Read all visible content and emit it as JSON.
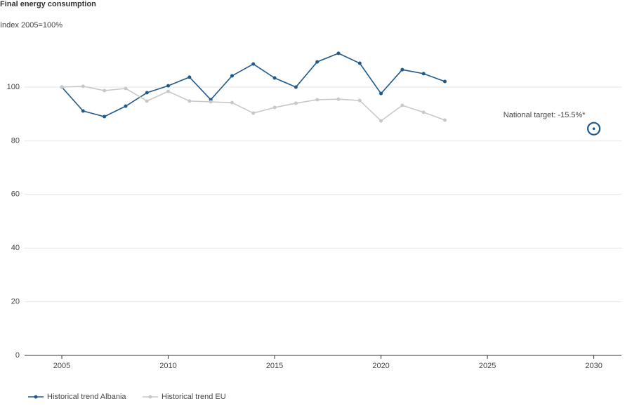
{
  "chart_data": {
    "type": "line",
    "title": "Final energy consumption",
    "subtitle": "Index 2005=100%",
    "x": [
      2005,
      2006,
      2007,
      2008,
      2009,
      2010,
      2011,
      2012,
      2013,
      2014,
      2015,
      2016,
      2017,
      2018,
      2019,
      2020,
      2021,
      2022,
      2023
    ],
    "series": [
      {
        "name": "Historical trend Albania",
        "color": "#1f5a8b",
        "values": [
          100,
          91.1,
          89.0,
          92.9,
          97.9,
          100.5,
          103.7,
          95.3,
          104.2,
          108.6,
          103.4,
          100.0,
          109.4,
          112.6,
          108.9,
          97.6,
          106.5,
          105.0,
          102.1
        ]
      },
      {
        "name": "Historical trend EU",
        "color": "#c8c8c8",
        "values": [
          100,
          100.3,
          98.7,
          99.5,
          94.8,
          98.4,
          94.8,
          94.5,
          94.2,
          90.3,
          92.4,
          94.0,
          95.3,
          95.5,
          95.0,
          87.4,
          93.2,
          90.6,
          87.7
        ]
      }
    ],
    "target": {
      "x": 2030,
      "value": 84.5,
      "label": "National target: -15.5%*",
      "color": "#1f5a8b"
    },
    "xlim": [
      2003.25,
      2031.3
    ],
    "xticks": [
      2005,
      2010,
      2015,
      2020,
      2025,
      2030
    ],
    "ylim": [
      0,
      120
    ],
    "yticks": [
      0,
      20,
      40,
      60,
      80,
      100
    ],
    "grid": true
  }
}
